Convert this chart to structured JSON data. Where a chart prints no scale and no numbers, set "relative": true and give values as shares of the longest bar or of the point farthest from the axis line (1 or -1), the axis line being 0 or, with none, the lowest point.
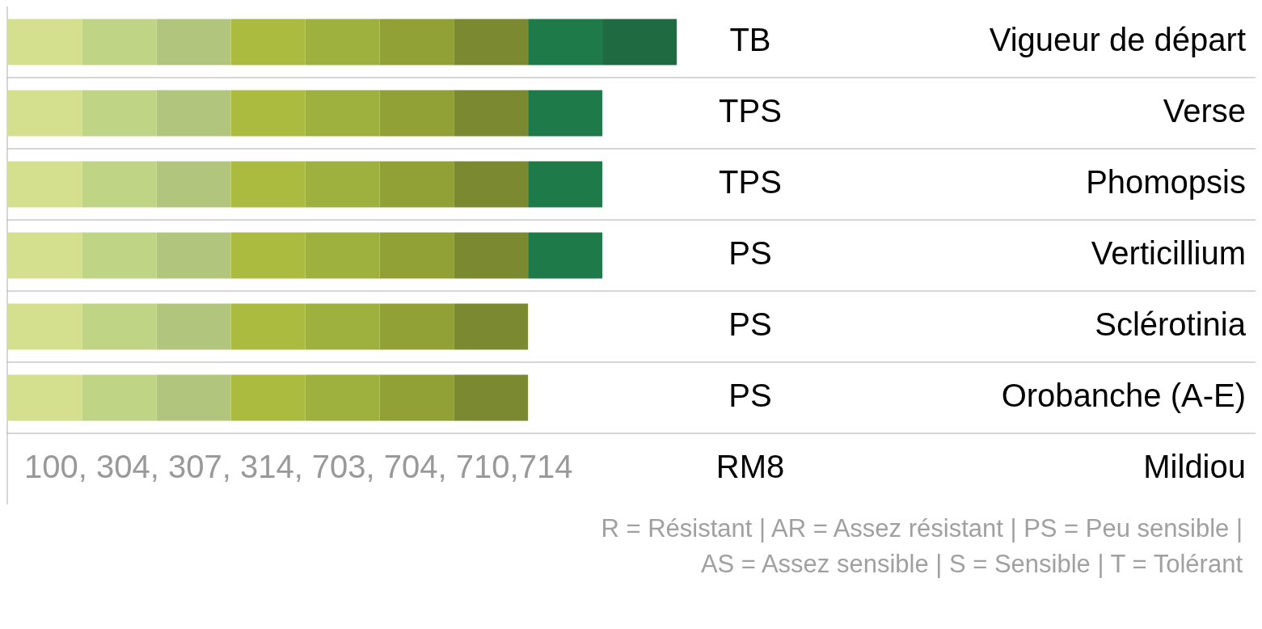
{
  "chart_data": {
    "type": "bar",
    "orientation": "horizontal",
    "stacked": true,
    "relative": true,
    "grid": "y",
    "categories": [
      "Vigueur de départ",
      "Verse",
      "Phomopsis",
      "Verticillium",
      "Sclérotinia",
      "Orobanche (A-E)",
      "Mildiou"
    ],
    "series": [
      {
        "color": "#d5e08f",
        "values": [
          0.1111,
          0.1111,
          0.1111,
          0.1111,
          0.1111,
          0.1111,
          null
        ]
      },
      {
        "color": "#c0d486",
        "values": [
          0.1111,
          0.1111,
          0.1111,
          0.1111,
          0.1111,
          0.1111,
          null
        ]
      },
      {
        "color": "#b1c67c",
        "values": [
          0.1111,
          0.1111,
          0.1111,
          0.1111,
          0.1111,
          0.1111,
          null
        ]
      },
      {
        "color": "#aabb40",
        "values": [
          0.1111,
          0.1111,
          0.1111,
          0.1111,
          0.1111,
          0.1111,
          null
        ]
      },
      {
        "color": "#9eb13f",
        "values": [
          0.1111,
          0.1111,
          0.1111,
          0.1111,
          0.1111,
          0.1111,
          null
        ]
      },
      {
        "color": "#91a136",
        "values": [
          0.1111,
          0.1111,
          0.1111,
          0.1111,
          0.1111,
          0.1111,
          null
        ]
      },
      {
        "color": "#7b8a30",
        "values": [
          0.1111,
          0.1111,
          0.1111,
          0.1111,
          0.1111,
          0.1111,
          null
        ]
      },
      {
        "color": "#1f7a4a",
        "values": [
          0.1111,
          0.1111,
          0.1111,
          0.1111,
          null,
          null,
          null
        ]
      },
      {
        "color": "#1f6a40",
        "values": [
          0.1112,
          null,
          null,
          null,
          null,
          null,
          null
        ]
      }
    ],
    "annotations": [
      "TB",
      "TPS",
      "TPS",
      "PS",
      "PS",
      "PS",
      "100, 304, 307, 314, 703, 704, 710,714",
      "RM8",
      "R = Résistant | AR = Assez résistant | PS = Peu sensible |",
      "AS = Assez sensible | S = Sensible | T = Tolérant"
    ]
  }
}
